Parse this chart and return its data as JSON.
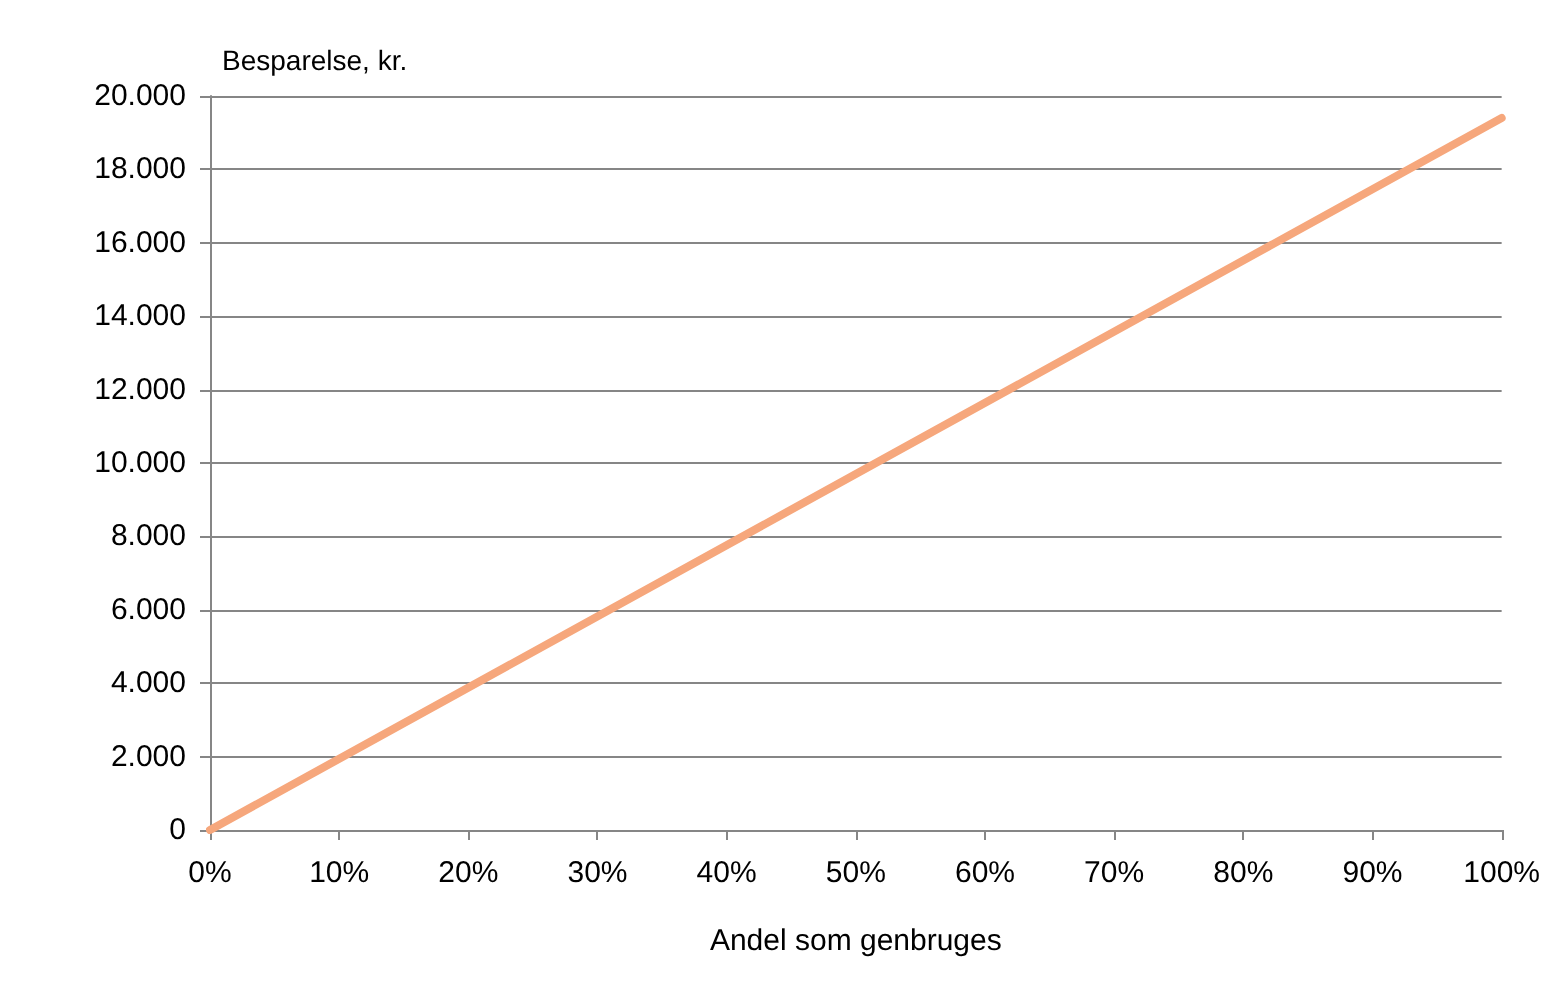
{
  "chart_data": {
    "type": "line",
    "xlabel": "Andel som genbruges",
    "ylabel": "Besparelse, kr.",
    "x": [
      0,
      100
    ],
    "series": [
      {
        "color": "#f6a77c",
        "values": [
          0,
          19400
        ]
      }
    ],
    "xlim": [
      0,
      100
    ],
    "xticks": [
      {
        "value": 0,
        "label": "0%"
      },
      {
        "value": 10,
        "label": "10%"
      },
      {
        "value": 20,
        "label": "20%"
      },
      {
        "value": 30,
        "label": "30%"
      },
      {
        "value": 40,
        "label": "40%"
      },
      {
        "value": 50,
        "label": "50%"
      },
      {
        "value": 60,
        "label": "60%"
      },
      {
        "value": 70,
        "label": "70%"
      },
      {
        "value": 80,
        "label": "80%"
      },
      {
        "value": 90,
        "label": "90%"
      },
      {
        "value": 100,
        "label": "100%"
      }
    ],
    "ylim": [
      0,
      20000
    ],
    "yticks": [
      {
        "value": 0,
        "label": "0"
      },
      {
        "value": 2000,
        "label": "2.000"
      },
      {
        "value": 4000,
        "label": "4.000"
      },
      {
        "value": 6000,
        "label": "6.000"
      },
      {
        "value": 8000,
        "label": "8.000"
      },
      {
        "value": 10000,
        "label": "10.000"
      },
      {
        "value": 12000,
        "label": "12.000"
      },
      {
        "value": 14000,
        "label": "14.000"
      },
      {
        "value": 16000,
        "label": "16.000"
      },
      {
        "value": 18000,
        "label": "18.000"
      },
      {
        "value": 20000,
        "label": "20.000"
      }
    ],
    "grid": "y",
    "marker": "none",
    "line_style": "solid"
  }
}
